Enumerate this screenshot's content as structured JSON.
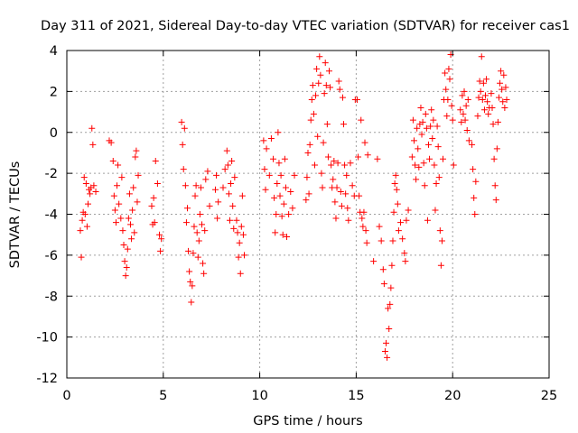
{
  "chart_data": {
    "type": "scatter",
    "title": "Day 311 of 2021, Sidereal Day-to-day VTEC variation (SDTVAR) for receiver cas1",
    "xlabel": "GPS time / hours",
    "ylabel": "SDTVAR / TECUs",
    "xlim": [
      0,
      25
    ],
    "ylim": [
      -12,
      4
    ],
    "xticks": [
      0,
      5,
      10,
      15,
      20,
      25
    ],
    "yticks": [
      -12,
      -10,
      -8,
      -6,
      -4,
      -2,
      0,
      2,
      4
    ],
    "grid": true,
    "marker": "+",
    "series": [
      {
        "name": "SDTVAR",
        "color": "#ff0000",
        "points": [
          [
            0.7,
            -4.8
          ],
          [
            0.75,
            -6.1
          ],
          [
            0.8,
            -4.3
          ],
          [
            0.85,
            -3.9
          ],
          [
            0.9,
            -2.2
          ],
          [
            0.95,
            -4.0
          ],
          [
            1.0,
            -2.5
          ],
          [
            1.05,
            -4.6
          ],
          [
            1.1,
            -3.5
          ],
          [
            1.15,
            -2.8
          ],
          [
            1.2,
            -3.0
          ],
          [
            1.25,
            -2.7
          ],
          [
            1.3,
            0.2
          ],
          [
            1.35,
            -0.6
          ],
          [
            1.4,
            -2.6
          ],
          [
            1.5,
            -2.9
          ],
          [
            2.2,
            -0.4
          ],
          [
            2.3,
            -0.5
          ],
          [
            2.4,
            -1.4
          ],
          [
            2.45,
            -3.1
          ],
          [
            2.5,
            -3.8
          ],
          [
            2.55,
            -4.4
          ],
          [
            2.6,
            -2.6
          ],
          [
            2.65,
            -1.6
          ],
          [
            2.7,
            -3.5
          ],
          [
            2.8,
            -4.2
          ],
          [
            2.85,
            -2.2
          ],
          [
            2.9,
            -4.8
          ],
          [
            2.95,
            -5.5
          ],
          [
            3.0,
            -6.3
          ],
          [
            3.05,
            -7.0
          ],
          [
            3.1,
            -6.6
          ],
          [
            3.15,
            -5.7
          ],
          [
            3.2,
            -4.2
          ],
          [
            3.25,
            -3.0
          ],
          [
            3.3,
            -4.5
          ],
          [
            3.35,
            -5.2
          ],
          [
            3.4,
            -3.8
          ],
          [
            3.45,
            -2.7
          ],
          [
            3.5,
            -4.9
          ],
          [
            3.55,
            -1.2
          ],
          [
            3.6,
            -0.9
          ],
          [
            3.65,
            -3.4
          ],
          [
            3.7,
            -2.1
          ],
          [
            4.4,
            -3.6
          ],
          [
            4.45,
            -4.5
          ],
          [
            4.5,
            -3.2
          ],
          [
            4.55,
            -4.4
          ],
          [
            4.6,
            -1.4
          ],
          [
            4.7,
            -2.5
          ],
          [
            4.8,
            -5.0
          ],
          [
            4.85,
            -5.8
          ],
          [
            4.9,
            -5.2
          ],
          [
            5.95,
            0.5
          ],
          [
            6.0,
            -0.6
          ],
          [
            6.05,
            -1.8
          ],
          [
            6.1,
            0.2
          ],
          [
            6.15,
            -2.6
          ],
          [
            6.2,
            -4.4
          ],
          [
            6.25,
            -3.7
          ],
          [
            6.3,
            -5.8
          ],
          [
            6.35,
            -6.8
          ],
          [
            6.4,
            -7.3
          ],
          [
            6.45,
            -8.3
          ],
          [
            6.5,
            -7.5
          ],
          [
            6.55,
            -5.9
          ],
          [
            6.6,
            -4.6
          ],
          [
            6.65,
            -3.1
          ],
          [
            6.7,
            -2.6
          ],
          [
            6.75,
            -4.9
          ],
          [
            6.8,
            -6.1
          ],
          [
            6.85,
            -5.3
          ],
          [
            6.9,
            -4.0
          ],
          [
            6.95,
            -2.7
          ],
          [
            7.0,
            -4.5
          ],
          [
            7.05,
            -6.4
          ],
          [
            7.1,
            -6.9
          ],
          [
            7.15,
            -4.8
          ],
          [
            7.2,
            -2.3
          ],
          [
            7.3,
            -1.9
          ],
          [
            7.4,
            -3.6
          ],
          [
            7.7,
            -2.8
          ],
          [
            7.75,
            -2.1
          ],
          [
            7.8,
            -4.2
          ],
          [
            7.85,
            -3.4
          ],
          [
            8.1,
            -2.7
          ],
          [
            8.2,
            -1.8
          ],
          [
            8.3,
            -0.9
          ],
          [
            8.35,
            -1.6
          ],
          [
            8.4,
            -3.0
          ],
          [
            8.45,
            -4.3
          ],
          [
            8.5,
            -2.5
          ],
          [
            8.55,
            -1.4
          ],
          [
            8.6,
            -3.6
          ],
          [
            8.65,
            -4.7
          ],
          [
            8.7,
            -2.2
          ],
          [
            8.8,
            -4.3
          ],
          [
            8.85,
            -4.9
          ],
          [
            8.9,
            -6.1
          ],
          [
            8.95,
            -5.4
          ],
          [
            9.0,
            -6.9
          ],
          [
            9.05,
            -4.6
          ],
          [
            9.1,
            -3.1
          ],
          [
            9.15,
            -5.0
          ],
          [
            9.2,
            -6.0
          ],
          [
            10.2,
            -0.4
          ],
          [
            10.25,
            -1.8
          ],
          [
            10.3,
            -2.8
          ],
          [
            10.35,
            -0.8
          ],
          [
            10.5,
            -2.1
          ],
          [
            10.6,
            -0.3
          ],
          [
            10.7,
            -1.3
          ],
          [
            10.75,
            -3.2
          ],
          [
            10.8,
            -4.9
          ],
          [
            10.85,
            -4.0
          ],
          [
            10.9,
            -2.5
          ],
          [
            10.95,
            0.0
          ],
          [
            11.0,
            -1.5
          ],
          [
            11.05,
            -3.1
          ],
          [
            11.1,
            -2.1
          ],
          [
            11.15,
            -4.1
          ],
          [
            11.2,
            -5.0
          ],
          [
            11.25,
            -3.5
          ],
          [
            11.3,
            -1.3
          ],
          [
            11.35,
            -2.7
          ],
          [
            11.4,
            -5.1
          ],
          [
            11.5,
            -4.0
          ],
          [
            11.6,
            -2.9
          ],
          [
            11.7,
            -3.7
          ],
          [
            11.8,
            -2.1
          ],
          [
            12.4,
            -3.3
          ],
          [
            12.45,
            -2.2
          ],
          [
            12.5,
            -1.0
          ],
          [
            12.55,
            -3.0
          ],
          [
            12.6,
            -0.6
          ],
          [
            12.65,
            0.6
          ],
          [
            12.7,
            1.6
          ],
          [
            12.75,
            2.3
          ],
          [
            12.8,
            0.9
          ],
          [
            12.85,
            -1.6
          ],
          [
            12.9,
            1.8
          ],
          [
            12.95,
            3.1
          ],
          [
            13.0,
            -0.2
          ],
          [
            13.05,
            2.4
          ],
          [
            13.1,
            3.7
          ],
          [
            13.15,
            2.8
          ],
          [
            13.2,
            -2.0
          ],
          [
            13.25,
            -2.7
          ],
          [
            13.3,
            -0.5
          ],
          [
            13.35,
            1.9
          ],
          [
            13.4,
            3.4
          ],
          [
            13.45,
            2.3
          ],
          [
            13.5,
            0.4
          ],
          [
            13.55,
            -1.2
          ],
          [
            13.6,
            3.0
          ],
          [
            13.65,
            2.2
          ],
          [
            13.7,
            -1.6
          ],
          [
            13.75,
            -2.7
          ],
          [
            13.8,
            -2.3
          ],
          [
            13.85,
            -1.4
          ],
          [
            13.9,
            -3.4
          ],
          [
            13.95,
            -4.2
          ],
          [
            14.0,
            -2.7
          ],
          [
            14.05,
            -1.5
          ],
          [
            14.1,
            2.5
          ],
          [
            14.15,
            2.1
          ],
          [
            14.2,
            -2.9
          ],
          [
            14.25,
            -3.6
          ],
          [
            14.3,
            1.7
          ],
          [
            14.35,
            0.4
          ],
          [
            14.4,
            -1.6
          ],
          [
            14.45,
            -3.0
          ],
          [
            14.5,
            -2.1
          ],
          [
            14.55,
            -3.7
          ],
          [
            14.6,
            -4.3
          ],
          [
            14.7,
            -1.5
          ],
          [
            14.8,
            -2.6
          ],
          [
            14.9,
            -3.1
          ],
          [
            14.95,
            1.6
          ],
          [
            15.05,
            1.6
          ],
          [
            15.1,
            -1.2
          ],
          [
            15.15,
            -3.1
          ],
          [
            15.2,
            -3.9
          ],
          [
            15.25,
            0.6
          ],
          [
            15.3,
            -4.2
          ],
          [
            15.35,
            -4.6
          ],
          [
            15.4,
            -3.9
          ],
          [
            15.45,
            -0.5
          ],
          [
            15.5,
            -4.8
          ],
          [
            15.55,
            -5.4
          ],
          [
            15.6,
            -1.1
          ],
          [
            15.9,
            -6.3
          ],
          [
            16.1,
            -1.3
          ],
          [
            16.2,
            -4.6
          ],
          [
            16.3,
            -5.3
          ],
          [
            16.4,
            -6.7
          ],
          [
            16.45,
            -7.4
          ],
          [
            16.5,
            -10.7
          ],
          [
            16.55,
            -10.3
          ],
          [
            16.6,
            -11.0
          ],
          [
            16.65,
            -8.6
          ],
          [
            16.7,
            -9.6
          ],
          [
            16.75,
            -8.4
          ],
          [
            16.8,
            -7.6
          ],
          [
            16.85,
            -6.5
          ],
          [
            16.9,
            -5.3
          ],
          [
            16.95,
            -3.9
          ],
          [
            17.0,
            -2.5
          ],
          [
            17.05,
            -2.1
          ],
          [
            17.1,
            -2.8
          ],
          [
            17.15,
            -3.5
          ],
          [
            17.2,
            -4.8
          ],
          [
            17.3,
            -4.4
          ],
          [
            17.4,
            -5.2
          ],
          [
            17.5,
            -5.9
          ],
          [
            17.55,
            -6.3
          ],
          [
            17.6,
            -4.3
          ],
          [
            17.7,
            -3.8
          ],
          [
            17.9,
            -1.2
          ],
          [
            17.95,
            0.6
          ],
          [
            18.0,
            -0.4
          ],
          [
            18.05,
            -1.6
          ],
          [
            18.1,
            -2.3
          ],
          [
            18.15,
            0.2
          ],
          [
            18.2,
            -0.8
          ],
          [
            18.25,
            -1.7
          ],
          [
            18.3,
            0.4
          ],
          [
            18.35,
            1.2
          ],
          [
            18.4,
            -0.1
          ],
          [
            18.45,
            0.5
          ],
          [
            18.5,
            -1.5
          ],
          [
            18.55,
            -2.6
          ],
          [
            18.6,
            0.9
          ],
          [
            18.65,
            0.2
          ],
          [
            18.7,
            -4.3
          ],
          [
            18.75,
            -0.6
          ],
          [
            18.8,
            -1.3
          ],
          [
            18.85,
            0.3
          ],
          [
            18.9,
            1.1
          ],
          [
            18.95,
            -0.3
          ],
          [
            19.0,
            0.6
          ],
          [
            19.05,
            -1.6
          ],
          [
            19.1,
            -3.8
          ],
          [
            19.15,
            -2.5
          ],
          [
            19.2,
            0.3
          ],
          [
            19.25,
            -0.7
          ],
          [
            19.3,
            -2.2
          ],
          [
            19.35,
            -4.8
          ],
          [
            19.4,
            -6.5
          ],
          [
            19.45,
            -5.3
          ],
          [
            19.5,
            -1.3
          ],
          [
            19.55,
            1.6
          ],
          [
            19.6,
            2.9
          ],
          [
            19.65,
            2.1
          ],
          [
            19.7,
            0.8
          ],
          [
            19.75,
            1.6
          ],
          [
            19.8,
            3.1
          ],
          [
            19.85,
            2.6
          ],
          [
            19.9,
            3.8
          ],
          [
            19.95,
            1.3
          ],
          [
            20.0,
            0.6
          ],
          [
            20.05,
            -1.6
          ],
          [
            20.4,
            1.1
          ],
          [
            20.45,
            0.5
          ],
          [
            20.5,
            1.8
          ],
          [
            20.55,
            0.9
          ],
          [
            20.6,
            2.0
          ],
          [
            20.65,
            0.6
          ],
          [
            20.7,
            1.3
          ],
          [
            20.75,
            0.1
          ],
          [
            20.8,
            1.6
          ],
          [
            20.85,
            -0.4
          ],
          [
            21.0,
            -0.6
          ],
          [
            21.05,
            -1.8
          ],
          [
            21.1,
            -3.2
          ],
          [
            21.15,
            -4.0
          ],
          [
            21.2,
            -2.4
          ],
          [
            21.3,
            0.8
          ],
          [
            21.35,
            1.7
          ],
          [
            21.4,
            2.5
          ],
          [
            21.45,
            2.0
          ],
          [
            21.5,
            3.7
          ],
          [
            21.55,
            1.6
          ],
          [
            21.6,
            2.4
          ],
          [
            21.65,
            1.1
          ],
          [
            21.7,
            1.8
          ],
          [
            21.75,
            2.6
          ],
          [
            21.8,
            1.5
          ],
          [
            21.85,
            0.9
          ],
          [
            21.9,
            1.2
          ],
          [
            22.0,
            1.9
          ],
          [
            22.05,
            1.2
          ],
          [
            22.1,
            0.4
          ],
          [
            22.15,
            -1.3
          ],
          [
            22.2,
            -2.6
          ],
          [
            22.25,
            -3.3
          ],
          [
            22.3,
            -0.8
          ],
          [
            22.35,
            0.5
          ],
          [
            22.4,
            1.7
          ],
          [
            22.45,
            2.4
          ],
          [
            22.5,
            3.0
          ],
          [
            22.55,
            2.1
          ],
          [
            22.6,
            1.5
          ],
          [
            22.65,
            2.8
          ],
          [
            22.7,
            1.2
          ],
          [
            22.75,
            2.2
          ],
          [
            22.8,
            1.6
          ]
        ]
      }
    ]
  }
}
